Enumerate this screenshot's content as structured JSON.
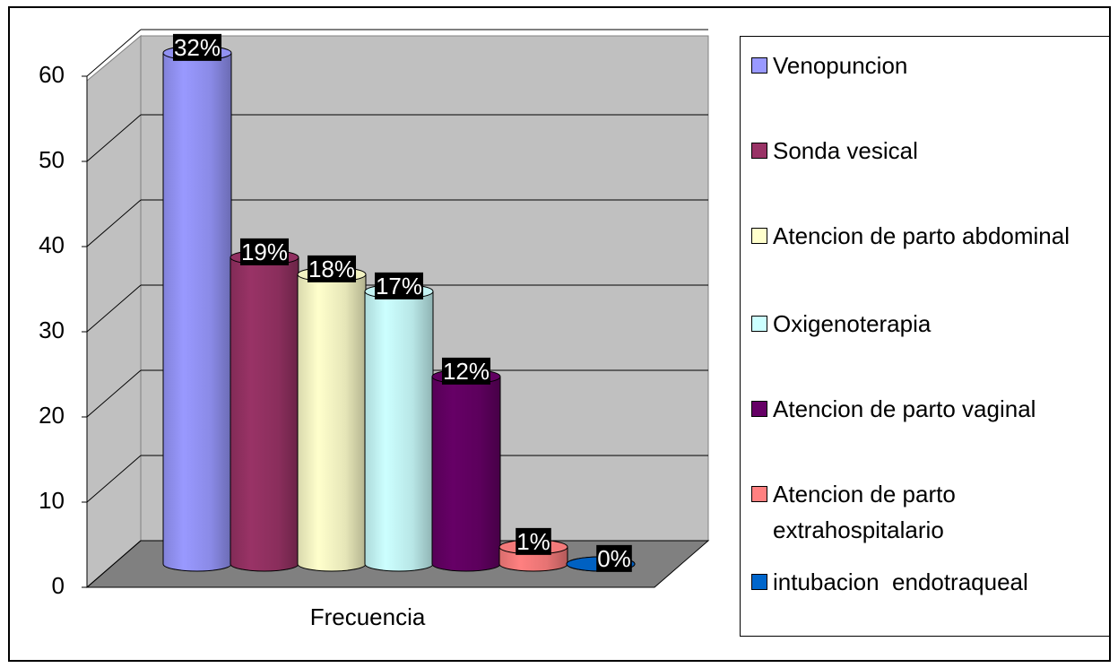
{
  "chart_data": {
    "type": "bar3d",
    "categories": [
      "Frecuencia"
    ],
    "ylim": [
      0,
      60
    ],
    "yticks": [
      0,
      10,
      20,
      30,
      40,
      50,
      60
    ],
    "grid": true,
    "legend": "right",
    "series": [
      {
        "name": "Venopuncion",
        "color": "#9999ff",
        "values": [
          60
        ],
        "data_labels": [
          "32%"
        ]
      },
      {
        "name": "Sonda vesical",
        "color": "#993366",
        "values": [
          36
        ],
        "data_labels": [
          "19%"
        ]
      },
      {
        "name": "Atencion de parto abdominal",
        "color": "#ffffcc",
        "values": [
          34
        ],
        "data_labels": [
          "18%"
        ]
      },
      {
        "name": "Oxigenoterapia",
        "color": "#ccffff",
        "values": [
          32
        ],
        "data_labels": [
          "17%"
        ]
      },
      {
        "name": "Atencion de parto vaginal",
        "color": "#660066",
        "values": [
          22
        ],
        "data_labels": [
          "12%"
        ]
      },
      {
        "name": "Atencion de parto extrahospitalario",
        "color": "#ff8080",
        "values": [
          2
        ],
        "data_labels": [
          "1%"
        ]
      },
      {
        "name": "intubacion  endotraqueal",
        "color": "#0066cc",
        "values": [
          0
        ],
        "data_labels": [
          "0%"
        ]
      }
    ]
  }
}
